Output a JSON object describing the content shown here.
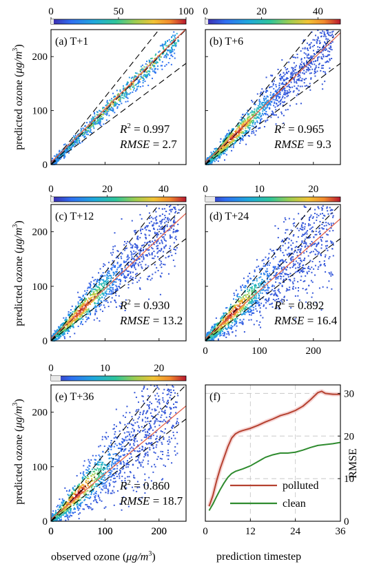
{
  "labels": {
    "ylabel_prefix": "predicted ozone (",
    "ylabel_unit": "μg/m",
    "ylabel_sup": "3",
    "ylabel_suffix": ")",
    "xlabel_prefix": "observed ozone (",
    "xlabel_unit": "μg/m",
    "xlabel_sup": "3",
    "xlabel_suffix": ")",
    "xlabel_f": "prediction timestep",
    "ylabel_f": "RMSE",
    "r2_sym": "R",
    "r2_sup": "2",
    "rmse_sym": "RMSE"
  },
  "colors": {
    "polluted": "#b5412f",
    "clean": "#2e8b2e",
    "fit_line": "#e0604a"
  },
  "chart_data": [
    {
      "type": "scatter",
      "panel": "(a) T+1",
      "colorbar_ticks": [
        "0",
        "50",
        "100"
      ],
      "colorbar_range": [
        0,
        100
      ],
      "xlim": [
        0,
        250
      ],
      "ylim": [
        0,
        250
      ],
      "xticks": [
        "0",
        "100",
        "200"
      ],
      "yticks": [
        "0",
        "100",
        "200"
      ],
      "r2": "0.997",
      "rmse": "2.7",
      "spread": 0.04
    },
    {
      "type": "scatter",
      "panel": "(b) T+6",
      "colorbar_ticks": [
        "0",
        "20",
        "40"
      ],
      "colorbar_range": [
        0,
        48
      ],
      "xlim": [
        0,
        250
      ],
      "ylim": [
        0,
        250
      ],
      "xticks": [
        "0",
        "100",
        "200"
      ],
      "yticks": [
        "0",
        "100",
        "200"
      ],
      "r2": "0.965",
      "rmse": "9.3",
      "spread": 0.12
    },
    {
      "type": "scatter",
      "panel": "(c) T+12",
      "colorbar_ticks": [
        "0",
        "20",
        "40"
      ],
      "colorbar_range": [
        0,
        48
      ],
      "xlim": [
        0,
        250
      ],
      "ylim": [
        0,
        250
      ],
      "xticks": [
        "0",
        "100",
        "200"
      ],
      "yticks": [
        "0",
        "100",
        "200"
      ],
      "r2": "0.930",
      "rmse": "13.2",
      "spread": 0.18
    },
    {
      "type": "scatter",
      "panel": "(d) T+24",
      "colorbar_ticks": [
        "0",
        "10",
        "20"
      ],
      "colorbar_range": [
        0,
        25
      ],
      "xlim": [
        0,
        250
      ],
      "ylim": [
        0,
        250
      ],
      "xticks": [
        "0",
        "100",
        "200"
      ],
      "yticks": [
        "0",
        "100",
        "200"
      ],
      "r2": "0.892",
      "rmse": "16.4",
      "spread": 0.23
    },
    {
      "type": "scatter",
      "panel": "(e) T+36",
      "colorbar_ticks": [
        "0",
        "10",
        "20"
      ],
      "colorbar_range": [
        0,
        25
      ],
      "xlim": [
        0,
        250
      ],
      "ylim": [
        0,
        250
      ],
      "xticks": [
        "0",
        "100",
        "200"
      ],
      "yticks": [
        "0",
        "100",
        "200"
      ],
      "r2": "0.860",
      "rmse": "18.7",
      "spread": 0.27
    },
    {
      "type": "line",
      "panel": "(f)",
      "xlim": [
        0,
        36
      ],
      "ylim": [
        0,
        32
      ],
      "xticks": [
        "0",
        "12",
        "24",
        "36"
      ],
      "yticks": [
        "0",
        "10",
        "20",
        "30"
      ],
      "grid": true,
      "legend_position": "bottom-center",
      "series": [
        {
          "name": "polluted",
          "x": [
            1,
            2,
            3,
            4,
            5,
            6,
            7,
            8,
            9,
            10,
            12,
            14,
            16,
            18,
            20,
            22,
            24,
            26,
            28,
            30,
            31,
            32,
            34,
            36
          ],
          "values": [
            3.5,
            6,
            9.5,
            12.5,
            15,
            17.5,
            19.5,
            20.5,
            21,
            21.3,
            21.8,
            22.5,
            23.3,
            24,
            24.8,
            25.3,
            26,
            27,
            28.5,
            30.2,
            30.5,
            30,
            29.8,
            29.8
          ]
        },
        {
          "name": "clean",
          "x": [
            1,
            2,
            3,
            4,
            5,
            6,
            7,
            8,
            10,
            12,
            14,
            16,
            18,
            20,
            22,
            24,
            26,
            28,
            30,
            32,
            34,
            36
          ],
          "values": [
            2.5,
            4,
            5.8,
            7.5,
            9,
            10.3,
            11.2,
            11.7,
            12.3,
            13,
            14,
            15,
            15.6,
            16,
            16,
            16.2,
            16.7,
            17.3,
            17.8,
            18,
            18.2,
            18.5
          ]
        }
      ]
    }
  ]
}
